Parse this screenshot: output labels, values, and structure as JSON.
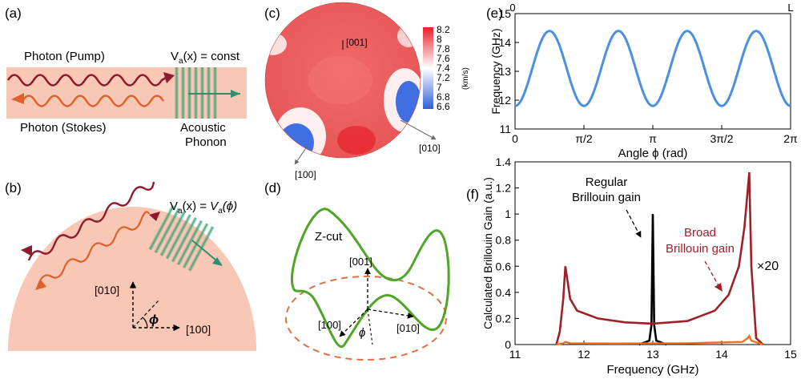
{
  "labels": {
    "a": "(a)",
    "b": "(b)",
    "c": "(c)",
    "d": "(d)",
    "e": "(e)",
    "f": "(f)"
  },
  "panel_a": {
    "pump_label": "Photon (Pump)",
    "stokes_label": "Photon (Stokes)",
    "velocity_label": "V",
    "velocity_sub": "a",
    "velocity_rest": "(x) = const",
    "phonon_label_1": "Acoustic",
    "phonon_label_2": "Phonon"
  },
  "panel_b": {
    "velocity_label": "V",
    "velocity_sub": "a",
    "velocity_mid": "(x) = ",
    "velocity_v": "V",
    "velocity_sub2": "a",
    "velocity_end": "(ϕ)",
    "axis_y": "[010]",
    "axis_x": "[100]",
    "angle": "ϕ"
  },
  "panel_c": {
    "dir_001": "[001]",
    "dir_010": "[010]",
    "dir_100": "[100]",
    "colorbar_ticks": [
      "8.2",
      "8",
      "7.8",
      "7.6",
      "7.4",
      "7.2",
      "7",
      "6.8",
      "6.6"
    ],
    "colorbar_unit": "(km/s)",
    "colors": {
      "high": "#e8202a",
      "mid": "#ffffff",
      "low": "#2e5fd6"
    }
  },
  "panel_d": {
    "title": "Z-cut",
    "dir_001": "[001]",
    "dir_100": "[100]",
    "dir_010": "[010]",
    "angle": "ϕ",
    "colors": {
      "curve": "#4ea526",
      "ellipse": "#e07040"
    }
  },
  "chart_data": [
    {
      "type": "line",
      "panel": "e",
      "ylabel": "Frequency (GHz)",
      "xlabel": "Angle ϕ (rad)",
      "xlim": [
        0,
        6.2832
      ],
      "ylim": [
        11,
        15
      ],
      "xticks": [
        "0",
        "π/2",
        "π",
        "3π/2",
        "2π"
      ],
      "yticks": [
        "11",
        "12",
        "13",
        "14",
        "15"
      ],
      "top_ticks": [
        "0",
        "L"
      ],
      "series": [
        {
          "color": "#4a90e2",
          "x": [
            0,
            0.3927,
            0.7854,
            1.1781,
            1.5708,
            1.9635,
            2.3562,
            2.7489,
            3.1416,
            3.5343,
            3.927,
            4.3197,
            4.7124,
            5.1051,
            5.4978,
            5.8905,
            6.2832
          ],
          "y": [
            11.8,
            13.1,
            14.4,
            13.1,
            11.8,
            13.1,
            14.4,
            13.1,
            11.8,
            13.1,
            14.4,
            13.1,
            11.8,
            13.1,
            14.4,
            13.1,
            11.8
          ]
        }
      ]
    },
    {
      "type": "line",
      "panel": "f",
      "ylabel": "Calculated Brillouin Gain (a.u.)",
      "xlabel": "Frequency (GHz)",
      "xlim": [
        11,
        15
      ],
      "ylim": [
        0,
        1.4
      ],
      "xticks": [
        "11",
        "12",
        "13",
        "14",
        "15"
      ],
      "yticks": [
        "0",
        "0.2",
        "0.4",
        "0.6",
        "0.8",
        "1",
        "1.2",
        "1.4"
      ],
      "annotations": {
        "regular_1": "Regular",
        "regular_2": "Brillouin gain",
        "broad_1": "Broad",
        "broad_2": "Brillouin gain",
        "scale": "×20"
      },
      "series": [
        {
          "color": "#000000",
          "x": [
            12.8,
            12.95,
            12.98,
            13.0,
            13.02,
            13.05,
            13.2
          ],
          "y": [
            0.0,
            0.03,
            0.15,
            1.0,
            0.15,
            0.03,
            0.0
          ]
        },
        {
          "color": "#a0202a",
          "x": [
            11.6,
            11.65,
            11.7,
            11.73,
            11.8,
            11.9,
            12.2,
            12.6,
            13.0,
            13.5,
            13.9,
            14.1,
            14.25,
            14.33,
            14.38,
            14.4,
            14.43,
            14.5,
            14.6
          ],
          "y": [
            0.0,
            0.1,
            0.35,
            0.6,
            0.35,
            0.26,
            0.2,
            0.17,
            0.16,
            0.18,
            0.26,
            0.38,
            0.6,
            0.9,
            1.2,
            1.32,
            0.6,
            0.05,
            0.0
          ]
        },
        {
          "color": "#f07020",
          "x": [
            11.6,
            11.7,
            11.73,
            11.8,
            12.5,
            13.5,
            14.3,
            14.38,
            14.4,
            14.43,
            14.6
          ],
          "y": [
            0.0,
            0.01,
            0.02,
            0.01,
            0.008,
            0.01,
            0.02,
            0.05,
            0.066,
            0.03,
            0.0
          ]
        }
      ]
    }
  ]
}
